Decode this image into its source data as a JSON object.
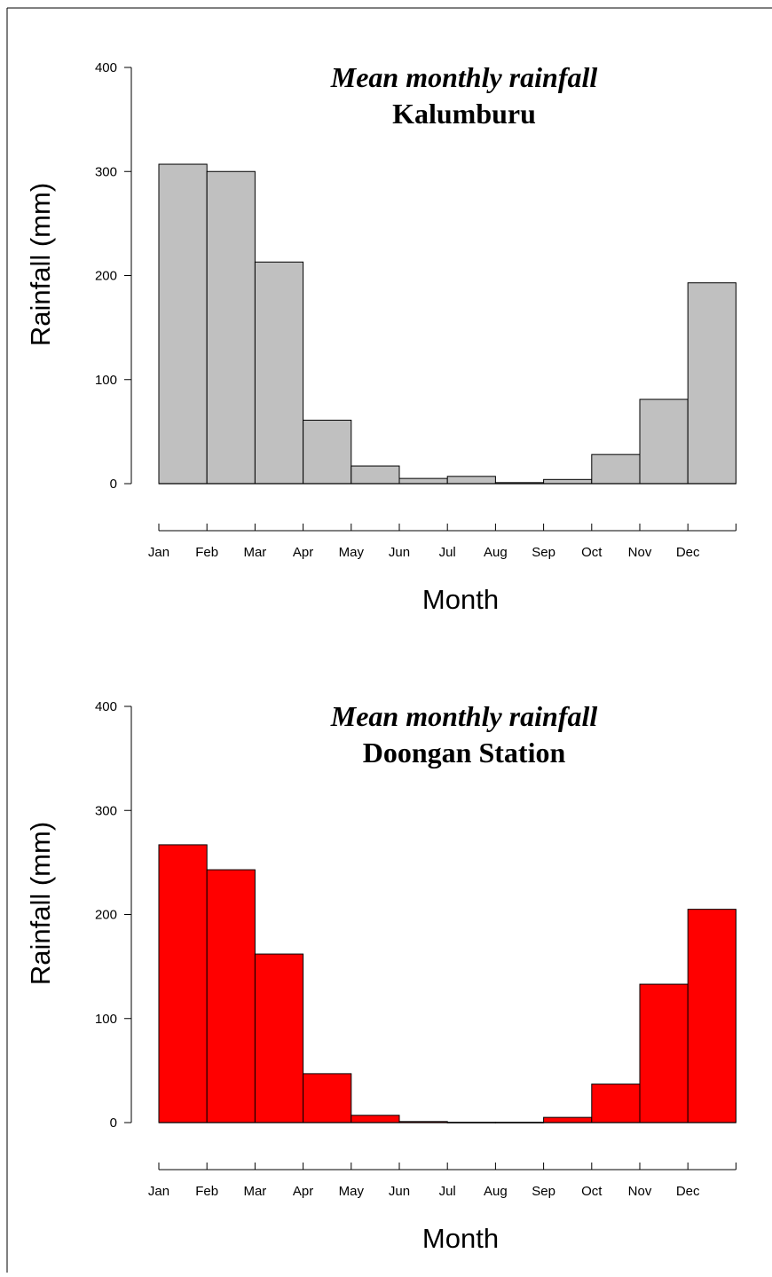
{
  "chart_data": [
    {
      "type": "bar",
      "title": "Mean monthly rainfall",
      "subtitle": "Kalumburu",
      "xlabel": "Month",
      "ylabel": "Rainfall (mm)",
      "categories": [
        "Jan",
        "Feb",
        "Mar",
        "Apr",
        "May",
        "Jun",
        "Jul",
        "Aug",
        "Sep",
        "Oct",
        "Nov",
        "Dec"
      ],
      "values": [
        307,
        300,
        213,
        61,
        17,
        5,
        7,
        1,
        4,
        28,
        81,
        193
      ],
      "ylim": [
        0,
        400
      ],
      "yticks": [
        "0",
        "100",
        "200",
        "300",
        "400"
      ],
      "bar_color": "#c0c0c0",
      "grid": false
    },
    {
      "type": "bar",
      "title": "Mean monthly rainfall",
      "subtitle": "Doongan Station",
      "xlabel": "Month",
      "ylabel": "Rainfall (mm)",
      "categories": [
        "Jan",
        "Feb",
        "Mar",
        "Apr",
        "May",
        "Jun",
        "Jul",
        "Aug",
        "Sep",
        "Oct",
        "Nov",
        "Dec"
      ],
      "values": [
        267,
        243,
        162,
        47,
        7,
        1,
        0.3,
        0.3,
        5,
        37,
        133,
        205
      ],
      "ylim": [
        0,
        400
      ],
      "yticks": [
        "0",
        "100",
        "200",
        "300",
        "400"
      ],
      "bar_color": "#ff0000",
      "grid": false
    }
  ]
}
